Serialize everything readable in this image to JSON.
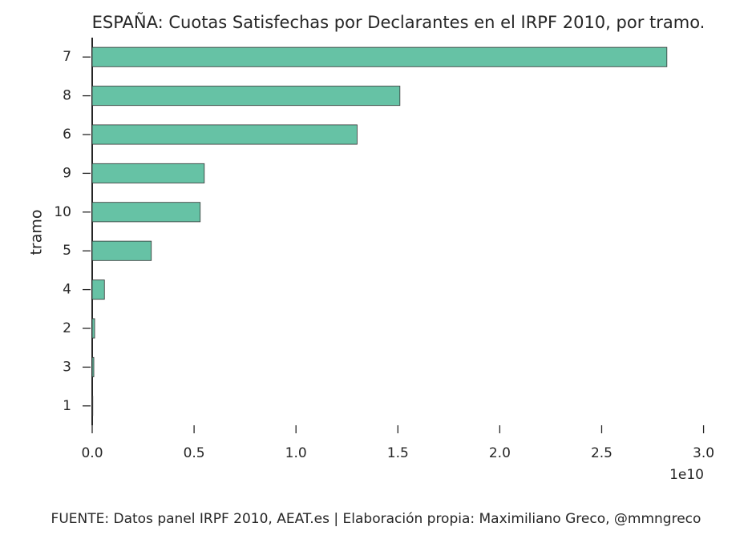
{
  "chart_data": {
    "type": "barh",
    "title": "ESPAÑA: Cuotas Satisfechas por Declarantes en el IRPF 2010, por tramo.",
    "ylabel": "tramo",
    "x_offset_label": "1e10",
    "source": "FUENTE: Datos panel IRPF 2010, AEAT.es | Elaboración propia: Maximiliano Greco, @mmngreco",
    "categories": [
      "7",
      "8",
      "6",
      "9",
      "10",
      "5",
      "4",
      "2",
      "3",
      "1"
    ],
    "values": [
      28200000000,
      15100000000,
      13000000000,
      5500000000,
      5300000000,
      2900000000,
      600000000,
      120000000,
      80000000,
      30000000
    ],
    "color": "#66c2a5",
    "xlim": [
      0,
      31000000000
    ],
    "xticks": [
      {
        "value": 0,
        "label": "0.0"
      },
      {
        "value": 5000000000,
        "label": "0.5"
      },
      {
        "value": 10000000000,
        "label": "1.0"
      },
      {
        "value": 15000000000,
        "label": "1.5"
      },
      {
        "value": 20000000000,
        "label": "2.0"
      },
      {
        "value": 25000000000,
        "label": "2.5"
      },
      {
        "value": 30000000000,
        "label": "3.0"
      }
    ],
    "grid": false
  }
}
